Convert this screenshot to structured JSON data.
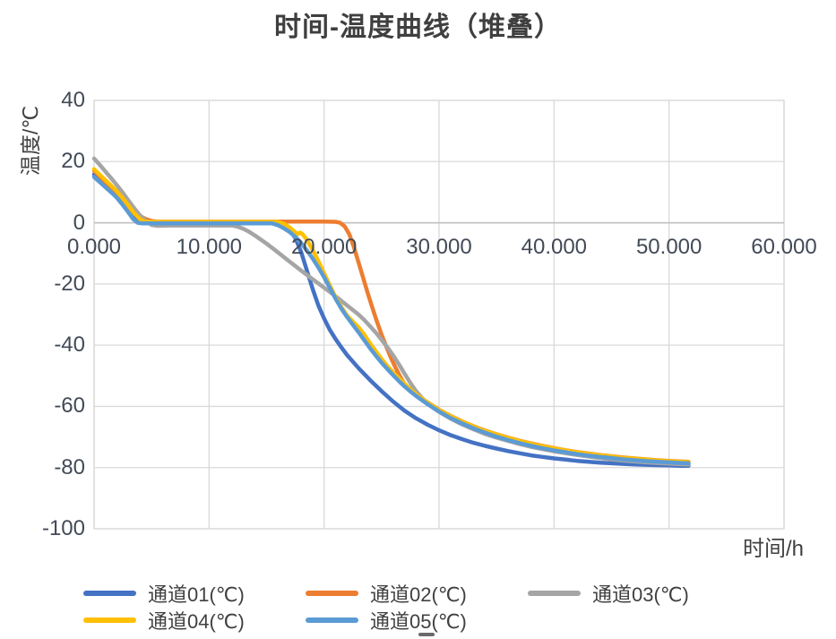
{
  "title": "时间-温度曲线（堆叠）",
  "y_axis": {
    "title": "温度/℃",
    "ticks": [
      "40",
      "20",
      "0",
      "-20",
      "-40",
      "-60",
      "-80",
      "-100"
    ]
  },
  "x_axis": {
    "title": "时间/h",
    "ticks": [
      "0.000",
      "10.000",
      "20.000",
      "30.000",
      "40.000",
      "50.000",
      "60.000"
    ]
  },
  "legend": [
    {
      "label": "通道01(℃)",
      "color": "#4472C4"
    },
    {
      "label": "通道02(℃)",
      "color": "#ED7D31"
    },
    {
      "label": "通道03(℃)",
      "color": "#A5A5A5"
    },
    {
      "label": "通道04(℃)",
      "color": "#FFC000"
    },
    {
      "label": "通道05(℃)",
      "color": "#5B9BD5"
    }
  ],
  "colors": {
    "grid": "#D9D9D9",
    "plot_border": "#D9D9D9",
    "zero_axis": "#BFBFBF",
    "text": "#404040",
    "tick_text": "#424a57"
  },
  "chart_data": {
    "type": "line",
    "title": "时间-温度曲线（堆叠）",
    "xlabel": "时间/h",
    "ylabel": "温度/℃",
    "xlim": [
      0,
      60
    ],
    "ylim": [
      -100,
      40
    ],
    "x_tick_step": 10,
    "y_tick_step": 20,
    "grid": true,
    "legend_position": "bottom",
    "series": [
      {
        "name": "通道01(℃)",
        "color": "#4472C4",
        "points": [
          [
            0,
            15.8
          ],
          [
            0.5,
            14
          ],
          [
            1,
            12.2
          ],
          [
            1.5,
            10.4
          ],
          [
            2,
            8.6
          ],
          [
            2.4,
            7.4
          ],
          [
            2.7,
            6.8
          ],
          [
            3,
            4.8
          ],
          [
            3.3,
            3
          ],
          [
            3.7,
            1.2
          ],
          [
            4,
            0.5
          ],
          [
            4.5,
            0.2
          ],
          [
            6,
            0.1
          ],
          [
            10,
            0.1
          ],
          [
            15,
            0.1
          ],
          [
            16,
            0
          ],
          [
            16.5,
            -0.8
          ],
          [
            17,
            -2.2
          ],
          [
            17.5,
            -5
          ],
          [
            18,
            -9.5
          ],
          [
            18.5,
            -15.5
          ],
          [
            19,
            -21.5
          ],
          [
            19.5,
            -27
          ],
          [
            20,
            -31.3
          ],
          [
            20.5,
            -35
          ],
          [
            21,
            -38
          ],
          [
            21.5,
            -40.7
          ],
          [
            22,
            -43.2
          ],
          [
            23,
            -47.5
          ],
          [
            24,
            -51.4
          ],
          [
            25,
            -55
          ],
          [
            26,
            -58.4
          ],
          [
            27,
            -61.4
          ],
          [
            28,
            -63.9
          ],
          [
            29,
            -66
          ],
          [
            30,
            -67.8
          ],
          [
            31,
            -69.4
          ],
          [
            32,
            -70.7
          ],
          [
            33,
            -71.9
          ],
          [
            34,
            -72.9
          ],
          [
            35,
            -73.8
          ],
          [
            36,
            -74.6
          ],
          [
            37,
            -75.3
          ],
          [
            38,
            -76
          ],
          [
            39,
            -76.5
          ],
          [
            40,
            -77
          ],
          [
            41,
            -77.4
          ],
          [
            42,
            -77.8
          ],
          [
            43,
            -78.1
          ],
          [
            44,
            -78.4
          ],
          [
            45,
            -78.6
          ],
          [
            46,
            -78.8
          ],
          [
            47,
            -79
          ],
          [
            48,
            -79.1
          ],
          [
            49,
            -79.2
          ],
          [
            50,
            -79.3
          ],
          [
            51,
            -79.4
          ],
          [
            51.7,
            -79.4
          ]
        ]
      },
      {
        "name": "通道02(℃)",
        "color": "#ED7D31",
        "points": [
          [
            0,
            17
          ],
          [
            0.5,
            15.2
          ],
          [
            1,
            13.3
          ],
          [
            1.5,
            11.4
          ],
          [
            2,
            9.4
          ],
          [
            2.5,
            7.2
          ],
          [
            3,
            4.8
          ],
          [
            3.2,
            3.9
          ],
          [
            3.5,
            3.3
          ],
          [
            3.8,
            2.4
          ],
          [
            4.1,
            2
          ],
          [
            4.5,
            1.2
          ],
          [
            5,
            0.6
          ],
          [
            5.5,
            0.4
          ],
          [
            8,
            0.4
          ],
          [
            12,
            0.4
          ],
          [
            16,
            0.4
          ],
          [
            20,
            0.4
          ],
          [
            21,
            0.3
          ],
          [
            21.4,
            0
          ],
          [
            21.8,
            -1.2
          ],
          [
            22.2,
            -3.8
          ],
          [
            22.6,
            -8
          ],
          [
            23,
            -13
          ],
          [
            23.4,
            -18
          ],
          [
            23.8,
            -23
          ],
          [
            24.2,
            -27.8
          ],
          [
            24.6,
            -32.3
          ],
          [
            25,
            -36.5
          ],
          [
            25.4,
            -40.4
          ],
          [
            25.8,
            -44
          ],
          [
            26.2,
            -47.2
          ],
          [
            26.6,
            -50.2
          ],
          [
            27,
            -52.8
          ],
          [
            27.4,
            -54.6
          ],
          [
            27.8,
            -55.9
          ],
          [
            28,
            -56.2
          ],
          [
            29,
            -58.7
          ],
          [
            30,
            -61.1
          ],
          [
            31,
            -63.1
          ],
          [
            32,
            -64.9
          ],
          [
            33,
            -66.5
          ],
          [
            34,
            -67.9
          ],
          [
            35,
            -69.1
          ],
          [
            36,
            -70.2
          ],
          [
            37,
            -71.2
          ],
          [
            38,
            -72.1
          ],
          [
            39,
            -72.9
          ],
          [
            40,
            -73.6
          ],
          [
            41,
            -74.3
          ],
          [
            42,
            -74.9
          ],
          [
            43,
            -75.4
          ],
          [
            44,
            -75.9
          ],
          [
            45,
            -76.3
          ],
          [
            46,
            -76.7
          ],
          [
            47,
            -77
          ],
          [
            48,
            -77.3
          ],
          [
            49,
            -77.6
          ],
          [
            50,
            -77.8
          ],
          [
            51,
            -78
          ],
          [
            51.7,
            -78.1
          ]
        ]
      },
      {
        "name": "通道03(℃)",
        "color": "#A5A5A5",
        "points": [
          [
            0,
            21
          ],
          [
            0.5,
            18.9
          ],
          [
            1,
            16.7
          ],
          [
            1.5,
            14.5
          ],
          [
            2,
            12.2
          ],
          [
            2.5,
            9.8
          ],
          [
            3,
            7.2
          ],
          [
            3.5,
            4.7
          ],
          [
            4,
            2.4
          ],
          [
            4.5,
            0.5
          ],
          [
            5,
            -0.7
          ],
          [
            5.5,
            -1
          ],
          [
            6.5,
            -0.9
          ],
          [
            9,
            -0.9
          ],
          [
            12,
            -0.9
          ],
          [
            12.5,
            -1.3
          ],
          [
            13,
            -2
          ],
          [
            13.5,
            -3
          ],
          [
            14,
            -4.2
          ],
          [
            14.5,
            -5.5
          ],
          [
            15,
            -6.8
          ],
          [
            16,
            -9.7
          ],
          [
            17,
            -12.7
          ],
          [
            18,
            -15.6
          ],
          [
            19,
            -18.4
          ],
          [
            20,
            -21.2
          ],
          [
            21,
            -24
          ],
          [
            22,
            -27
          ],
          [
            23,
            -30
          ],
          [
            23.5,
            -31.8
          ],
          [
            24,
            -33.8
          ],
          [
            24.5,
            -35.9
          ],
          [
            25,
            -38.2
          ],
          [
            25.5,
            -40.7
          ],
          [
            26,
            -43.3
          ],
          [
            26.5,
            -46.2
          ],
          [
            27,
            -49.3
          ],
          [
            27.5,
            -52.3
          ],
          [
            28,
            -55
          ],
          [
            28.5,
            -57.2
          ],
          [
            29,
            -59
          ],
          [
            29.5,
            -60.5
          ],
          [
            30,
            -61.8
          ],
          [
            31,
            -64
          ],
          [
            32,
            -65.9
          ],
          [
            33,
            -67.5
          ],
          [
            34,
            -69
          ],
          [
            35,
            -70.2
          ],
          [
            36,
            -71.3
          ],
          [
            37,
            -72.3
          ],
          [
            38,
            -73.2
          ],
          [
            39,
            -74
          ],
          [
            40,
            -74.7
          ],
          [
            41,
            -75.3
          ],
          [
            42,
            -75.9
          ],
          [
            43,
            -76.4
          ],
          [
            44,
            -76.9
          ],
          [
            45,
            -77.3
          ],
          [
            46,
            -77.7
          ],
          [
            47,
            -78
          ],
          [
            48,
            -78.3
          ],
          [
            49,
            -78.5
          ],
          [
            50,
            -78.7
          ],
          [
            51,
            -78.9
          ],
          [
            51.7,
            -79
          ]
        ]
      },
      {
        "name": "通道04(℃)",
        "color": "#FFC000",
        "points": [
          [
            0,
            17.5
          ],
          [
            0.5,
            15.7
          ],
          [
            1,
            13.9
          ],
          [
            1.5,
            12.1
          ],
          [
            2,
            10.2
          ],
          [
            2.5,
            8
          ],
          [
            3,
            5.6
          ],
          [
            3.5,
            3.1
          ],
          [
            4,
            1.2
          ],
          [
            4.4,
            0.4
          ],
          [
            5,
            0.3
          ],
          [
            8,
            0.3
          ],
          [
            12,
            0.3
          ],
          [
            16,
            0.3
          ],
          [
            16.5,
            -0.3
          ],
          [
            17,
            -1.5
          ],
          [
            17.4,
            -2.8
          ],
          [
            17.7,
            -3.8
          ],
          [
            17.9,
            -3.2
          ],
          [
            18.1,
            -3.6
          ],
          [
            18.5,
            -5.5
          ],
          [
            19,
            -8.8
          ],
          [
            19.5,
            -12.5
          ],
          [
            20,
            -16.5
          ],
          [
            20.5,
            -20.5
          ],
          [
            21,
            -24.3
          ],
          [
            21.5,
            -27.5
          ],
          [
            22,
            -30.3
          ],
          [
            22.5,
            -32.3
          ],
          [
            23,
            -34.2
          ],
          [
            23.5,
            -36.6
          ],
          [
            24,
            -39.4
          ],
          [
            24.5,
            -42
          ],
          [
            25,
            -44.5
          ],
          [
            25.5,
            -46.8
          ],
          [
            26,
            -48.9
          ],
          [
            26.5,
            -50.8
          ],
          [
            27,
            -52.6
          ],
          [
            27.5,
            -54.4
          ],
          [
            28,
            -56
          ],
          [
            29,
            -58.8
          ],
          [
            30,
            -61.2
          ],
          [
            31,
            -63.2
          ],
          [
            32,
            -65
          ],
          [
            33,
            -66.6
          ],
          [
            34,
            -68
          ],
          [
            35,
            -69.2
          ],
          [
            36,
            -70.3
          ],
          [
            37,
            -71.3
          ],
          [
            38,
            -72.2
          ],
          [
            39,
            -73
          ],
          [
            40,
            -73.7
          ],
          [
            41,
            -74.4
          ],
          [
            42,
            -75
          ],
          [
            43,
            -75.5
          ],
          [
            44,
            -76
          ],
          [
            45,
            -76.4
          ],
          [
            46,
            -76.8
          ],
          [
            47,
            -77.1
          ],
          [
            48,
            -77.4
          ],
          [
            49,
            -77.7
          ],
          [
            50,
            -77.9
          ],
          [
            51,
            -78.1
          ],
          [
            51.7,
            -78.2
          ]
        ]
      },
      {
        "name": "通道05(℃)",
        "color": "#5B9BD5",
        "points": [
          [
            0,
            15
          ],
          [
            0.5,
            13.3
          ],
          [
            1,
            11.6
          ],
          [
            1.5,
            9.9
          ],
          [
            2,
            8.1
          ],
          [
            2.5,
            5.8
          ],
          [
            3,
            3.3
          ],
          [
            3.4,
            1.2
          ],
          [
            3.8,
            0
          ],
          [
            4.2,
            -0.2
          ],
          [
            5,
            -0.2
          ],
          [
            8,
            -0.2
          ],
          [
            12,
            -0.2
          ],
          [
            15.5,
            -0.2
          ],
          [
            16,
            -0.8
          ],
          [
            16.5,
            -1.8
          ],
          [
            17,
            -3
          ],
          [
            17.5,
            -4.6
          ],
          [
            18,
            -6.6
          ],
          [
            18.5,
            -9
          ],
          [
            19,
            -11.6
          ],
          [
            19.5,
            -14.6
          ],
          [
            20,
            -17.8
          ],
          [
            20.5,
            -21.3
          ],
          [
            21,
            -24.8
          ],
          [
            21.5,
            -28
          ],
          [
            22,
            -30.8
          ],
          [
            22.5,
            -33.3
          ],
          [
            23,
            -35.8
          ],
          [
            23.5,
            -38.4
          ],
          [
            24,
            -41
          ],
          [
            24.5,
            -43.4
          ],
          [
            25,
            -45.7
          ],
          [
            25.5,
            -47.8
          ],
          [
            26,
            -49.8
          ],
          [
            26.5,
            -51.7
          ],
          [
            27,
            -53.5
          ],
          [
            27.5,
            -55.1
          ],
          [
            28,
            -56.6
          ],
          [
            29,
            -59.3
          ],
          [
            30,
            -61.7
          ],
          [
            31,
            -63.8
          ],
          [
            32,
            -65.6
          ],
          [
            33,
            -67.2
          ],
          [
            34,
            -68.6
          ],
          [
            35,
            -69.9
          ],
          [
            36,
            -71
          ],
          [
            37,
            -72
          ],
          [
            38,
            -72.9
          ],
          [
            39,
            -73.7
          ],
          [
            40,
            -74.4
          ],
          [
            41,
            -75
          ],
          [
            42,
            -75.6
          ],
          [
            43,
            -76.1
          ],
          [
            44,
            -76.5
          ],
          [
            45,
            -76.9
          ],
          [
            46,
            -77.3
          ],
          [
            47,
            -77.6
          ],
          [
            48,
            -77.9
          ],
          [
            49,
            -78.1
          ],
          [
            50,
            -78.3
          ],
          [
            51,
            -78.5
          ],
          [
            51.7,
            -78.6
          ]
        ]
      }
    ]
  }
}
